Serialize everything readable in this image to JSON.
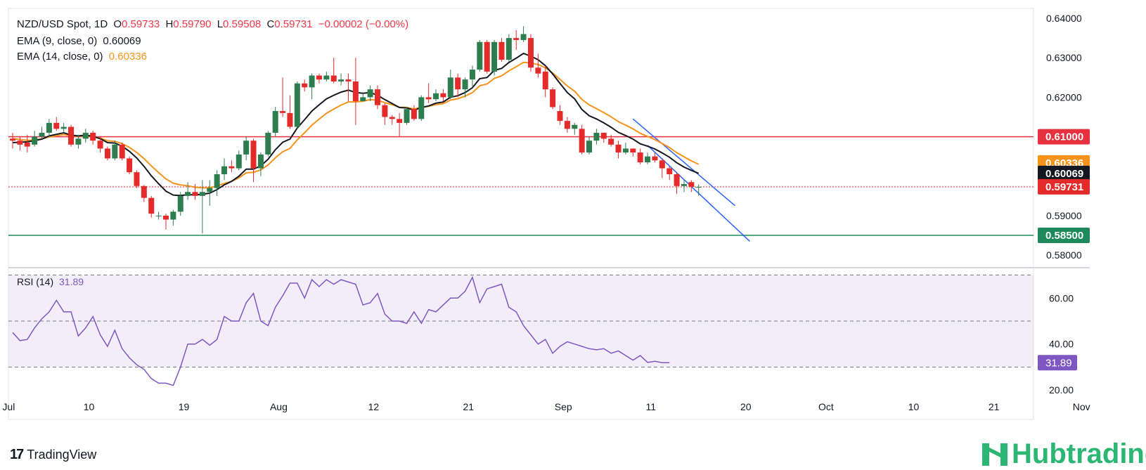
{
  "header": {
    "symbol": "NZD/USD Spot, 1D",
    "o_label": "O",
    "o_value": "0.59733",
    "h_label": "H",
    "h_value": "0.59790",
    "l_label": "L",
    "l_value": "0.59508",
    "c_label": "C",
    "c_value": "0.59731",
    "change": "−0.00002 (−0.00%)",
    "ema9_label": "EMA (9, close, 0)",
    "ema9_value": "0.60069",
    "ema14_label": "EMA (14, close, 0)",
    "ema14_value": "0.60336",
    "rsi_label": "RSI (14)",
    "rsi_value": "31.89"
  },
  "branding": {
    "tradingview": "TradingView",
    "hub": "Hubtrading"
  },
  "colors": {
    "up": "#2e7d4f",
    "down": "#e52a2a",
    "ema9": "#131722",
    "ema14": "#f7931a",
    "hline_red": "#e8313f",
    "hline_green": "#1e8a5c",
    "channel": "#2962ff",
    "rsi": "#7e57c2"
  },
  "chart_data": [
    {
      "type": "candlestick",
      "ylim": [
        0.577,
        0.6425
      ],
      "y_ticks": [
        "0.64000",
        "0.63000",
        "0.62000",
        "0.59000",
        "0.58000"
      ],
      "x_ticks": [
        "Jul",
        "10",
        "19",
        "Aug",
        "12",
        "21",
        "Sep",
        "11",
        "20",
        "Oct",
        "10",
        "21",
        "Nov"
      ],
      "horizontal_lines": [
        {
          "value": 0.61,
          "label": "0.61000"
        },
        {
          "value": 0.585,
          "label": "0.58500"
        }
      ],
      "price_tags": [
        {
          "label": "0.61000",
          "value": 0.61
        },
        {
          "label": "0.60336",
          "value": 0.60336
        },
        {
          "label": "0.60069",
          "value": 0.60069
        },
        {
          "label": "0.59731",
          "value": 0.59731
        },
        {
          "label": "0.58500",
          "value": 0.585
        }
      ],
      "candles": [
        [
          0.6095,
          0.609,
          0.611,
          0.607
        ],
        [
          0.609,
          0.608,
          0.61,
          0.6065
        ],
        [
          0.6085,
          0.6075,
          0.6105,
          0.606
        ],
        [
          0.608,
          0.61,
          0.6115,
          0.6075
        ],
        [
          0.61,
          0.611,
          0.6125,
          0.6095
        ],
        [
          0.611,
          0.6135,
          0.6145,
          0.61
        ],
        [
          0.6135,
          0.612,
          0.615,
          0.6115
        ],
        [
          0.612,
          0.6125,
          0.6135,
          0.611
        ],
        [
          0.6125,
          0.608,
          0.613,
          0.6075
        ],
        [
          0.608,
          0.6095,
          0.6105,
          0.607
        ],
        [
          0.6095,
          0.611,
          0.612,
          0.6085
        ],
        [
          0.611,
          0.609,
          0.6115,
          0.608
        ],
        [
          0.609,
          0.607,
          0.61,
          0.606
        ],
        [
          0.607,
          0.6045,
          0.6075,
          0.604
        ],
        [
          0.6045,
          0.608,
          0.609,
          0.604
        ],
        [
          0.608,
          0.6045,
          0.6085,
          0.604
        ],
        [
          0.6045,
          0.601,
          0.605,
          0.6005
        ],
        [
          0.601,
          0.5975,
          0.6015,
          0.597
        ],
        [
          0.5975,
          0.5945,
          0.5978,
          0.5935
        ],
        [
          0.5945,
          0.5905,
          0.595,
          0.5895
        ],
        [
          0.59,
          0.59,
          0.591,
          0.589
        ],
        [
          0.59,
          0.589,
          0.5905,
          0.5865
        ],
        [
          0.589,
          0.591,
          0.5915,
          0.5875
        ],
        [
          0.591,
          0.595,
          0.596,
          0.59
        ],
        [
          0.595,
          0.596,
          0.5985,
          0.594
        ],
        [
          0.596,
          0.595,
          0.598,
          0.594
        ],
        [
          0.595,
          0.596,
          0.599,
          0.5855
        ],
        [
          0.596,
          0.597,
          0.599,
          0.5925
        ],
        [
          0.597,
          0.6005,
          0.6015,
          0.595
        ],
        [
          0.6005,
          0.6025,
          0.6045,
          0.599
        ],
        [
          0.6025,
          0.602,
          0.604,
          0.601
        ],
        [
          0.602,
          0.6055,
          0.6065,
          0.6015
        ],
        [
          0.6055,
          0.609,
          0.61,
          0.604
        ],
        [
          0.609,
          0.602,
          0.6095,
          0.5985
        ],
        [
          0.602,
          0.6055,
          0.606,
          0.6
        ],
        [
          0.6055,
          0.611,
          0.6115,
          0.605
        ],
        [
          0.611,
          0.6165,
          0.6175,
          0.61
        ],
        [
          0.6165,
          0.616,
          0.625,
          0.615
        ],
        [
          0.616,
          0.6125,
          0.6205,
          0.612
        ],
        [
          0.6125,
          0.6235,
          0.624,
          0.612
        ],
        [
          0.6235,
          0.6225,
          0.6245,
          0.6215
        ],
        [
          0.6225,
          0.6255,
          0.626,
          0.6195
        ],
        [
          0.6255,
          0.6245,
          0.626,
          0.6235
        ],
        [
          0.6245,
          0.6255,
          0.6265,
          0.624
        ],
        [
          0.6255,
          0.624,
          0.63,
          0.6235
        ],
        [
          0.624,
          0.6245,
          0.626,
          0.623
        ],
        [
          0.6245,
          0.624,
          0.626,
          0.619
        ],
        [
          0.624,
          0.619,
          0.63,
          0.613
        ],
        [
          0.619,
          0.62,
          0.621,
          0.619
        ],
        [
          0.62,
          0.622,
          0.623,
          0.619
        ],
        [
          0.622,
          0.618,
          0.623,
          0.617
        ],
        [
          0.618,
          0.615,
          0.6185,
          0.613
        ],
        [
          0.615,
          0.6145,
          0.6155,
          0.613
        ],
        [
          0.6145,
          0.6135,
          0.616,
          0.61
        ],
        [
          0.6135,
          0.617,
          0.6175,
          0.613
        ],
        [
          0.617,
          0.6145,
          0.618,
          0.614
        ],
        [
          0.6145,
          0.62,
          0.6205,
          0.614
        ],
        [
          0.62,
          0.6195,
          0.6235,
          0.6185
        ],
        [
          0.6195,
          0.621,
          0.622,
          0.619
        ],
        [
          0.621,
          0.62,
          0.622,
          0.619
        ],
        [
          0.62,
          0.625,
          0.627,
          0.6195
        ],
        [
          0.625,
          0.622,
          0.626,
          0.62
        ],
        [
          0.622,
          0.6245,
          0.625,
          0.62
        ],
        [
          0.6245,
          0.627,
          0.628,
          0.6225
        ],
        [
          0.627,
          0.634,
          0.6345,
          0.6265
        ],
        [
          0.634,
          0.6265,
          0.6345,
          0.626
        ],
        [
          0.6265,
          0.634,
          0.6345,
          0.6255
        ],
        [
          0.634,
          0.6295,
          0.635,
          0.629
        ],
        [
          0.6295,
          0.635,
          0.636,
          0.629
        ],
        [
          0.635,
          0.6345,
          0.637,
          0.632
        ],
        [
          0.6345,
          0.636,
          0.638,
          0.634
        ],
        [
          0.635,
          0.6275,
          0.636,
          0.6265
        ],
        [
          0.6275,
          0.626,
          0.631,
          0.625
        ],
        [
          0.6265,
          0.622,
          0.628,
          0.62
        ],
        [
          0.622,
          0.6175,
          0.6225,
          0.617
        ],
        [
          0.6165,
          0.614,
          0.618,
          0.613
        ],
        [
          0.614,
          0.612,
          0.615,
          0.611
        ],
        [
          0.612,
          0.613,
          0.6135,
          0.6105
        ],
        [
          0.612,
          0.606,
          0.613,
          0.6055
        ],
        [
          0.606,
          0.609,
          0.61,
          0.6055
        ],
        [
          0.609,
          0.611,
          0.612,
          0.608
        ],
        [
          0.611,
          0.6095,
          0.611,
          0.6085
        ],
        [
          0.6095,
          0.608,
          0.6105,
          0.6075
        ],
        [
          0.608,
          0.606,
          0.609,
          0.6045
        ],
        [
          0.606,
          0.607,
          0.6085,
          0.6055
        ],
        [
          0.607,
          0.606,
          0.607,
          0.605
        ],
        [
          0.606,
          0.6035,
          0.607,
          0.603
        ],
        [
          0.6035,
          0.605,
          0.606,
          0.603
        ],
        [
          0.605,
          0.604,
          0.606,
          0.6035
        ],
        [
          0.604,
          0.602,
          0.6045,
          0.5995
        ],
        [
          0.602,
          0.6005,
          0.6025,
          0.599
        ],
        [
          0.6005,
          0.5975,
          0.601,
          0.5955
        ],
        [
          0.5975,
          0.598,
          0.599,
          0.596
        ],
        [
          0.5985,
          0.5973,
          0.599,
          0.596
        ],
        [
          0.5973,
          0.5973,
          0.5979,
          0.5951
        ]
      ],
      "ema9": [
        0.6085,
        0.6086,
        0.6087,
        0.609,
        0.6094,
        0.6102,
        0.6106,
        0.611,
        0.6104,
        0.6102,
        0.6104,
        0.6101,
        0.6095,
        0.6085,
        0.6084,
        0.6076,
        0.6063,
        0.6046,
        0.6025,
        0.6001,
        0.5981,
        0.5962,
        0.5952,
        0.5951,
        0.5953,
        0.5953,
        0.5954,
        0.5957,
        0.5966,
        0.5978,
        0.5987,
        0.6,
        0.6018,
        0.6018,
        0.6026,
        0.6043,
        0.6067,
        0.6086,
        0.6094,
        0.6122,
        0.6143,
        0.6165,
        0.6181,
        0.6196,
        0.6205,
        0.6213,
        0.6218,
        0.6212,
        0.621,
        0.6212,
        0.6205,
        0.6194,
        0.6184,
        0.6174,
        0.6173,
        0.6167,
        0.6174,
        0.6178,
        0.6185,
        0.6188,
        0.62,
        0.6204,
        0.6212,
        0.6224,
        0.6247,
        0.625,
        0.6268,
        0.6273,
        0.6288,
        0.6299,
        0.6311,
        0.6304,
        0.6295,
        0.628,
        0.6259,
        0.6235,
        0.6212,
        0.6196,
        0.6169,
        0.6153,
        0.6145,
        0.6135,
        0.6124,
        0.6111,
        0.6103,
        0.6094,
        0.6082,
        0.6076,
        0.6069,
        0.6059,
        0.6048,
        0.6034,
        0.6023,
        0.6015,
        0.6007
      ]
    },
    {
      "type": "line",
      "title": "RSI (14)",
      "ylim": [
        17.0,
        72.0
      ],
      "y_ticks": [
        "60.00",
        "40.00",
        "20.00"
      ],
      "bands": {
        "upper": 70,
        "middle": 50,
        "lower": 30
      },
      "current": 31.89,
      "values": [
        45,
        41.5,
        42,
        47,
        51,
        54,
        59,
        54,
        54,
        43.5,
        47,
        52,
        44,
        39,
        46,
        38,
        34,
        31,
        29,
        25,
        23,
        23,
        22,
        30,
        40,
        40,
        42,
        39.5,
        42,
        52,
        50,
        50,
        58,
        62,
        50,
        48,
        56,
        61,
        66.5,
        66.5,
        60,
        68,
        65,
        68,
        66,
        68,
        67,
        66,
        57,
        58,
        62,
        53,
        50,
        50,
        49,
        54,
        49,
        55,
        54,
        57,
        60,
        60,
        63,
        69,
        58,
        64,
        65,
        66,
        56,
        54,
        48,
        44,
        40,
        42,
        36,
        39,
        41,
        40,
        39,
        38,
        37.5,
        38,
        36,
        37,
        35,
        33,
        35,
        32,
        32.5,
        31.9,
        31.89
      ]
    }
  ]
}
